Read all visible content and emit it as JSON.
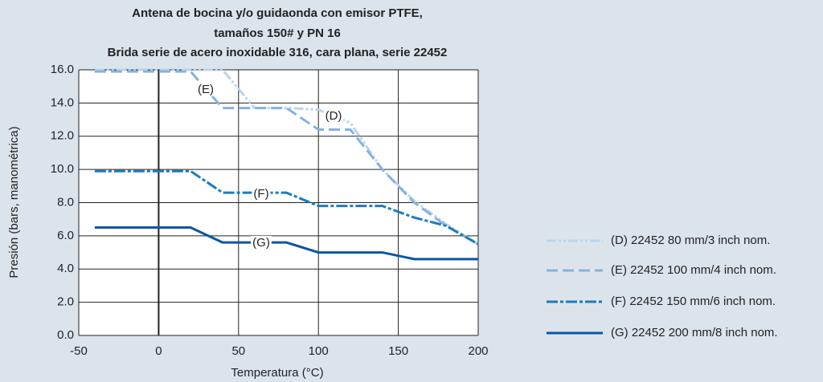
{
  "chart_data": {
    "type": "line",
    "title": [
      "Antena de bocina y/o guidaonda con emisor PTFE,",
      "tamaños 150# y PN 16",
      "Brida serie de acero inoxidable 316, cara plana, serie 22452"
    ],
    "xlabel": "Temperatura (°C)",
    "ylabel": "Presión (bars, manométrica)",
    "xlim": [
      -50,
      200
    ],
    "xticks": [
      -50,
      0,
      50,
      100,
      150,
      200
    ],
    "ylim": [
      0,
      16
    ],
    "yticks": [
      {
        "value": 0,
        "label": "0.0"
      },
      {
        "value": 2,
        "label": "2.0"
      },
      {
        "value": 4,
        "label": "4.0"
      },
      {
        "value": 6,
        "label": "6.0"
      },
      {
        "value": 8,
        "label": "8.0"
      },
      {
        "value": 10,
        "label": "10.0"
      },
      {
        "value": 12,
        "label": "12.0"
      },
      {
        "value": 14,
        "label": "14.0"
      },
      {
        "value": 16,
        "label": "16.0"
      }
    ],
    "grid": true,
    "legend": "right",
    "annotations": [
      "(E)",
      "(D)",
      "(F)",
      "(G)"
    ],
    "series": [
      {
        "name": "(D) 22452 80 mm/3 inch nom.",
        "color": "#b9d5ee",
        "dash": "dash-dot-dot",
        "x": [
          -40,
          40,
          60,
          80,
          100,
          120,
          140,
          160,
          180,
          200
        ],
        "values": [
          16,
          16,
          13.7,
          13.7,
          13.6,
          12.8,
          10,
          8.1,
          6.7,
          5.5
        ]
      },
      {
        "name": "(E) 22452 100 mm/4 inch nom.",
        "color": "#86b2df",
        "dash": "dashed",
        "x": [
          -40,
          20,
          40,
          80,
          100,
          120,
          140,
          160,
          180,
          200
        ],
        "values": [
          15.9,
          15.9,
          13.7,
          13.7,
          12.4,
          12.4,
          10,
          8,
          6.6,
          5.5
        ]
      },
      {
        "name": "(F) 22452 150 mm/6 inch nom.",
        "color": "#1a7cc1",
        "dash": "dash-dot",
        "x": [
          -40,
          20,
          40,
          80,
          100,
          140,
          160,
          180,
          200
        ],
        "values": [
          9.9,
          9.9,
          8.6,
          8.6,
          7.8,
          7.8,
          7.1,
          6.6,
          5.5
        ]
      },
      {
        "name": "(G) 22452 200 mm/8 inch nom.",
        "color": "#0a56a4",
        "dash": "solid",
        "x": [
          -40,
          20,
          40,
          80,
          100,
          140,
          160,
          200
        ],
        "values": [
          6.5,
          6.5,
          5.6,
          5.6,
          5.0,
          5.0,
          4.6,
          4.6
        ]
      }
    ]
  }
}
